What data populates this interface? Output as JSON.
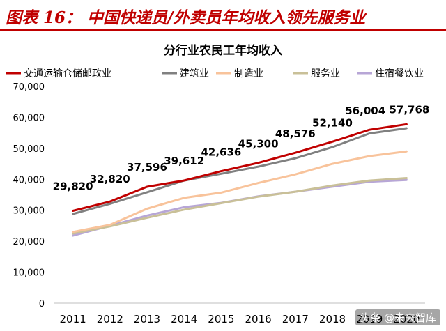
{
  "header": {
    "title": "图表 16： 中国快递员/外卖员年均收入领先服务业"
  },
  "watermark": "头条 @未来智库",
  "colors": {
    "header_red": "#c00000",
    "series": [
      "#c00000",
      "#808080",
      "#f8c39b",
      "#c9c098",
      "#b7a6d6"
    ]
  },
  "chart_data": {
    "type": "line",
    "title": "分行业农民工年均收入",
    "xlabel": "",
    "ylabel": "",
    "x": [
      "2011",
      "2012",
      "2013",
      "2014",
      "2015",
      "2016",
      "2017",
      "2018",
      "2019",
      "2020"
    ],
    "ylim": [
      0,
      70000
    ],
    "yticks": [
      0,
      10000,
      20000,
      30000,
      40000,
      50000,
      60000,
      70000
    ],
    "ytick_labels": [
      "0",
      "10,000",
      "20,000",
      "30,000",
      "40,000",
      "50,000",
      "60,000",
      "70,000"
    ],
    "grid": false,
    "legend_position": "top",
    "series": [
      {
        "name": "交通运输仓储邮政业",
        "values": [
          29820,
          32820,
          37596,
          39612,
          42636,
          45300,
          48576,
          52140,
          56004,
          57768
        ],
        "labels": [
          "29,820",
          "32,820",
          "37,596",
          "39,612",
          "42,636",
          "45,300",
          "48,576",
          "52,140",
          "56,004",
          "57,768"
        ]
      },
      {
        "name": "建筑业",
        "values": [
          28800,
          32100,
          35800,
          39600,
          41800,
          44100,
          46800,
          50400,
          54800,
          56500
        ]
      },
      {
        "name": "制造业",
        "values": [
          23000,
          25300,
          30500,
          34000,
          35700,
          38800,
          41600,
          45000,
          47500,
          49000
        ]
      },
      {
        "name": "服务业",
        "values": [
          22500,
          24800,
          27600,
          30200,
          32300,
          34400,
          36000,
          38000,
          39600,
          40400
        ]
      },
      {
        "name": "住宿餐饮业",
        "values": [
          21800,
          25000,
          28300,
          31000,
          32400,
          34500,
          36000,
          37600,
          39200,
          39800
        ]
      }
    ]
  }
}
